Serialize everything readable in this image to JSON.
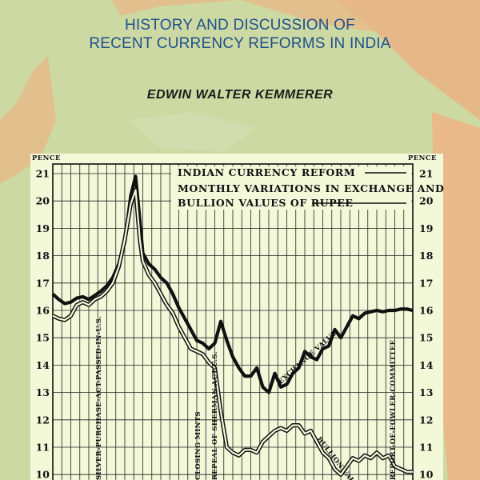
{
  "cover": {
    "title_line1": "HISTORY AND DISCUSSION OF",
    "title_line2": "RECENT CURRENCY REFORMS IN INDIA",
    "author": "EDWIN WALTER KEMMERER",
    "colors": {
      "background": "#e2c08d",
      "map": "#ccd9a2",
      "title": "#1f4f8e",
      "chart_paper": "#f3f8d9"
    }
  },
  "chart_data": {
    "type": "line",
    "title_lines": [
      "INDIAN CURRENCY REFORM",
      "MONTHLY VARIATIONS IN EXCHANGE AND",
      "BULLION VALUES OF RUPEE"
    ],
    "y_unit_left": "PENCE",
    "y_unit_right": "PENCE",
    "y_ticks": [
      21,
      20,
      19,
      18,
      17,
      16,
      15,
      14,
      13,
      12,
      11,
      10
    ],
    "ylim": [
      10,
      21
    ],
    "grid": true,
    "x_index_range": [
      0,
      60
    ],
    "series": [
      {
        "name": "EXCHANGE VALUE",
        "style": "thick",
        "points": [
          [
            0,
            16.6
          ],
          [
            1,
            16.4
          ],
          [
            2,
            16.25
          ],
          [
            3,
            16.3
          ],
          [
            4,
            16.45
          ],
          [
            5,
            16.5
          ],
          [
            6,
            16.4
          ],
          [
            7,
            16.55
          ],
          [
            8,
            16.7
          ],
          [
            9,
            16.9
          ],
          [
            10,
            17.2
          ],
          [
            11,
            17.7
          ],
          [
            12,
            18.5
          ],
          [
            13,
            20.2
          ],
          [
            13.8,
            20.9
          ],
          [
            14.5,
            19.3
          ],
          [
            15,
            18.1
          ],
          [
            16,
            17.7
          ],
          [
            17,
            17.5
          ],
          [
            18,
            17.2
          ],
          [
            19,
            17.0
          ],
          [
            20,
            16.6
          ],
          [
            21,
            16.1
          ],
          [
            22,
            15.7
          ],
          [
            23,
            15.3
          ],
          [
            24,
            14.9
          ],
          [
            25,
            14.8
          ],
          [
            26,
            14.6
          ],
          [
            27,
            14.8
          ],
          [
            28,
            15.6
          ],
          [
            29,
            14.9
          ],
          [
            30,
            14.3
          ],
          [
            31,
            13.9
          ],
          [
            32,
            13.6
          ],
          [
            33,
            13.6
          ],
          [
            34,
            13.9
          ],
          [
            35,
            13.2
          ],
          [
            36,
            13.0
          ],
          [
            37,
            13.7
          ],
          [
            38,
            13.2
          ],
          [
            39,
            13.3
          ],
          [
            40,
            13.7
          ],
          [
            41,
            13.9
          ],
          [
            42,
            14.5
          ],
          [
            43,
            14.3
          ],
          [
            44,
            14.2
          ],
          [
            45,
            14.6
          ],
          [
            46,
            14.7
          ],
          [
            47,
            15.3
          ],
          [
            48,
            15.0
          ],
          [
            49,
            15.4
          ],
          [
            50,
            15.8
          ],
          [
            51,
            15.7
          ],
          [
            52,
            15.9
          ],
          [
            53,
            15.95
          ],
          [
            54,
            16.0
          ],
          [
            55,
            15.95
          ],
          [
            56,
            16.0
          ],
          [
            57,
            16.0
          ],
          [
            58,
            16.05
          ],
          [
            59,
            16.05
          ],
          [
            60,
            16.0
          ]
        ]
      },
      {
        "name": "BULLION VALUE",
        "style": "double",
        "points": [
          [
            0,
            15.8
          ],
          [
            1,
            15.7
          ],
          [
            2,
            15.65
          ],
          [
            3,
            15.8
          ],
          [
            4,
            16.2
          ],
          [
            5,
            16.3
          ],
          [
            6,
            16.2
          ],
          [
            7,
            16.4
          ],
          [
            8,
            16.5
          ],
          [
            9,
            16.7
          ],
          [
            10,
            17.0
          ],
          [
            11,
            17.6
          ],
          [
            12,
            18.6
          ],
          [
            13,
            19.9
          ],
          [
            13.8,
            20.4
          ],
          [
            14.5,
            18.6
          ],
          [
            15,
            17.8
          ],
          [
            16,
            17.3
          ],
          [
            17,
            17.0
          ],
          [
            18,
            16.6
          ],
          [
            19,
            16.2
          ],
          [
            20,
            15.9
          ],
          [
            21,
            15.4
          ],
          [
            22,
            15.0
          ],
          [
            23,
            14.6
          ],
          [
            24,
            14.5
          ],
          [
            25,
            14.4
          ],
          [
            26,
            14.1
          ],
          [
            27,
            13.9
          ],
          [
            28,
            12.3
          ],
          [
            29,
            11.0
          ],
          [
            30,
            10.8
          ],
          [
            31,
            10.7
          ],
          [
            32,
            10.9
          ],
          [
            33,
            10.9
          ],
          [
            34,
            10.8
          ],
          [
            35,
            11.2
          ],
          [
            36,
            11.4
          ],
          [
            37,
            11.6
          ],
          [
            38,
            11.7
          ],
          [
            39,
            11.6
          ],
          [
            40,
            11.8
          ],
          [
            41,
            11.8
          ],
          [
            42,
            11.5
          ],
          [
            43,
            11.6
          ],
          [
            44,
            11.2
          ],
          [
            45,
            10.8
          ],
          [
            46,
            10.6
          ],
          [
            47,
            10.2
          ],
          [
            48,
            10.0
          ],
          [
            49,
            10.3
          ],
          [
            50,
            10.6
          ],
          [
            51,
            10.5
          ],
          [
            52,
            10.7
          ],
          [
            53,
            10.6
          ],
          [
            54,
            10.8
          ],
          [
            55,
            10.6
          ],
          [
            56,
            10.7
          ],
          [
            57,
            10.3
          ],
          [
            58,
            10.2
          ],
          [
            59,
            10.1
          ],
          [
            60,
            10.1
          ]
        ]
      }
    ],
    "labels": [
      {
        "text": "EXCHANGE VALUE",
        "x": 38,
        "y": 13.3,
        "rotate": -42
      },
      {
        "text": "BULLION VALUE",
        "x": 44,
        "y": 11.3,
        "rotate": 52
      }
    ],
    "events": [
      {
        "text": "SILVER-PURCHASE-ACT-PASSED-IN-U.S.",
        "x": 8
      },
      {
        "text": "CLOSING MINTS",
        "x": 24.5
      },
      {
        "text": "REPEAL OF SHERMAN ACT-U.S.",
        "x": 27.3
      },
      {
        "text": "REPORT-OF-FOWLER-COMMITTEE",
        "x": 57
      }
    ]
  }
}
